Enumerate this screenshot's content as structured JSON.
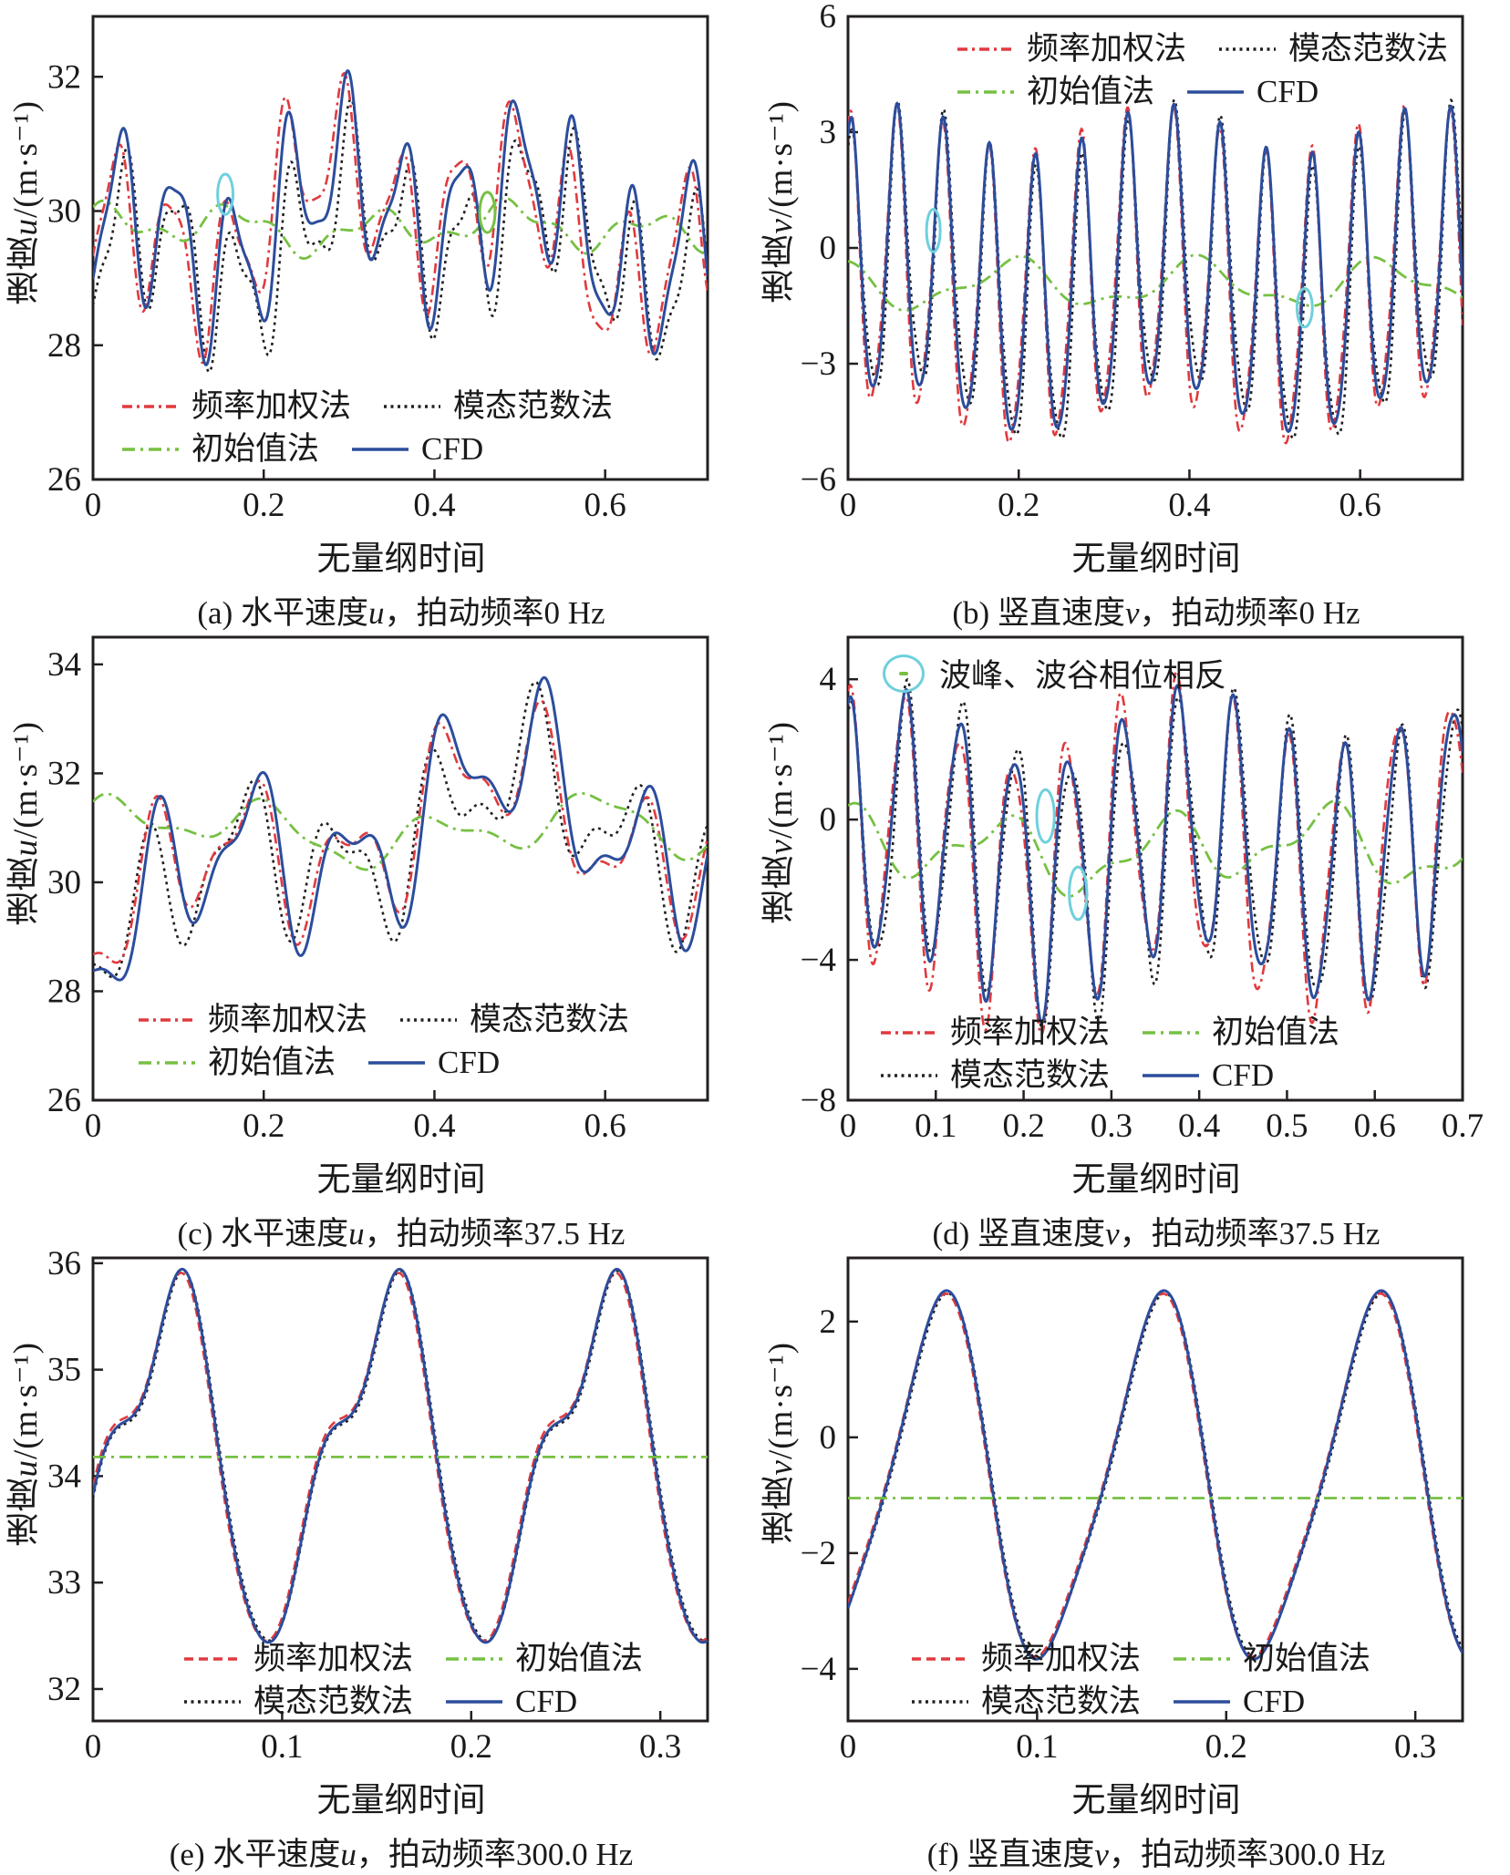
{
  "methods": {
    "fw": {
      "label": "频率加权法"
    },
    "mt": {
      "label": "模态范数法"
    },
    "init": {
      "label": "初始值法"
    },
    "cfd": {
      "label": "CFD"
    }
  },
  "colors": {
    "fw": "#e03a3e",
    "mt": "#231f20",
    "init": "#76c043",
    "cfd": "#2c4d9c",
    "cyan": "#6fd0dc",
    "green": "#76c043",
    "axis": "#231f20"
  },
  "line_styles": {
    "dashdot": "11 5 3 5",
    "longdashdot": "14 6 3 6",
    "dot": "3 4.5",
    "dash": "10 6",
    "solid": ""
  },
  "line_widths": {
    "fw": 2.6,
    "mt": 2.6,
    "init": 2.8,
    "cfd": 3
  },
  "chart_data": [
    {
      "type": "line",
      "id": "a",
      "caption": {
        "pre": "(a) 水平速度",
        "sym": "u",
        "post": "，拍动频率0 Hz"
      },
      "ylabel": {
        "pre": "速度",
        "sym": "u",
        "unit": "/(m·s⁻¹)"
      },
      "xlabel": "无量纲时间",
      "xlim": [
        0,
        0.72
      ],
      "ylim": [
        26,
        32.9
      ],
      "xticks": [
        [
          0,
          "0"
        ],
        [
          0.2,
          "0.2"
        ],
        [
          0.4,
          "0.4"
        ],
        [
          0.6,
          "0.6"
        ]
      ],
      "yticks": [
        [
          26,
          "26"
        ],
        [
          28,
          "28"
        ],
        [
          30,
          "30"
        ],
        [
          32,
          "32"
        ]
      ],
      "legend": {
        "rows": [
          [
            "fw",
            "mt"
          ],
          [
            "init",
            "cfd"
          ]
        ]
      },
      "series": [
        {
          "method": "mt",
          "style": "dot",
          "base": 29.55,
          "terms": [
            [
              0.95,
              15,
              -1.7
            ],
            [
              0.6,
              4.2,
              0.1
            ],
            [
              0.4,
              27,
              0.5
            ],
            [
              0.35,
              1.5,
              4.0
            ]
          ]
        },
        {
          "method": "fw",
          "style": "dashdot",
          "base": 29.85,
          "terms": [
            [
              1.0,
              15,
              -0.9
            ],
            [
              0.65,
              4.2,
              0.9
            ],
            [
              0.3,
              27,
              1.5
            ],
            [
              0.55,
              1.5,
              4.6
            ]
          ]
        },
        {
          "method": "init",
          "style": "longdashdot",
          "base": 29.75,
          "terms": [
            [
              0.25,
              6.2,
              1.3
            ],
            [
              0.12,
              15,
              0.4
            ],
            [
              0.1,
              2.6,
              0.2
            ]
          ]
        },
        {
          "method": "cfd",
          "style": "solid",
          "base": 29.85,
          "terms": [
            [
              1.1,
              15,
              -1.3
            ],
            [
              0.6,
              4.2,
              0.5
            ],
            [
              0.35,
              27,
              0.9
            ],
            [
              0.4,
              1.5,
              4.3
            ]
          ]
        }
      ],
      "annotations": [
        {
          "x": 0.155,
          "y": 30.25,
          "rx": 0.009,
          "ry": 0.3,
          "color": "cyan"
        },
        {
          "x": 0.462,
          "y": 29.98,
          "rx": 0.009,
          "ry": 0.3,
          "color": "green"
        }
      ]
    },
    {
      "type": "line",
      "id": "b",
      "caption": {
        "pre": "(b) 竖直速度",
        "sym": "v",
        "post": "，拍动频率0 Hz"
      },
      "ylabel": {
        "pre": "速度",
        "sym": "v",
        "unit": "/(m·s⁻¹)"
      },
      "xlabel": "无量纲时间",
      "xlim": [
        0,
        0.72
      ],
      "ylim": [
        -6,
        6
      ],
      "xticks": [
        [
          0,
          "0"
        ],
        [
          0.2,
          "0.2"
        ],
        [
          0.4,
          "0.4"
        ],
        [
          0.6,
          "0.6"
        ]
      ],
      "yticks": [
        [
          -6,
          "−6"
        ],
        [
          -3,
          "−3"
        ],
        [
          0,
          "0"
        ],
        [
          3,
          "3"
        ],
        [
          6,
          "6"
        ]
      ],
      "legend": {
        "rows": [
          [
            "fw",
            "mt"
          ],
          [
            "init",
            "cfd"
          ]
        ]
      },
      "series": [
        {
          "method": "mt",
          "style": "dot",
          "base": -1.05,
          "terms": [
            [
              3.5,
              18.5,
              1.0
            ],
            [
              0.85,
              3.2,
              0.1
            ],
            [
              0.6,
              37,
              1.0
            ]
          ]
        },
        {
          "method": "fw",
          "style": "dashdot",
          "base": -1.0,
          "terms": [
            [
              3.7,
              18.5,
              1.35
            ],
            [
              0.6,
              3.2,
              0.7
            ],
            [
              0.55,
              37,
              0.3
            ]
          ]
        },
        {
          "method": "init",
          "style": "longdashdot",
          "base": -0.95,
          "terms": [
            [
              0.55,
              4.6,
              2.3
            ],
            [
              0.22,
              10,
              1.1
            ]
          ]
        },
        {
          "method": "cfd",
          "style": "solid",
          "base": -0.95,
          "terms": [
            [
              3.6,
              18.5,
              1.2
            ],
            [
              0.65,
              3.2,
              0.4
            ],
            [
              0.45,
              37,
              0.6
            ]
          ]
        }
      ],
      "annotations": [
        {
          "x": 0.1,
          "y": 0.45,
          "rx": 0.008,
          "ry": 0.55,
          "color": "cyan"
        },
        {
          "x": 0.535,
          "y": -1.55,
          "rx": 0.009,
          "ry": 0.5,
          "color": "cyan"
        }
      ]
    },
    {
      "type": "line",
      "id": "c",
      "caption": {
        "pre": "(c) 水平速度",
        "sym": "u",
        "post": "，拍动频率37.5 Hz"
      },
      "ylabel": {
        "pre": "速度",
        "sym": "u",
        "unit": "/(m·s⁻¹)"
      },
      "xlabel": "无量纲时间",
      "xlim": [
        0,
        0.72
      ],
      "ylim": [
        26,
        34.5
      ],
      "xticks": [
        [
          0,
          "0"
        ],
        [
          0.2,
          "0.2"
        ],
        [
          0.4,
          "0.4"
        ],
        [
          0.6,
          "0.6"
        ]
      ],
      "yticks": [
        [
          26,
          "26"
        ],
        [
          28,
          "28"
        ],
        [
          30,
          "30"
        ],
        [
          32,
          "32"
        ],
        [
          34,
          "34"
        ]
      ],
      "legend": {
        "rows": [
          [
            "fw",
            "mt"
          ],
          [
            "init",
            "cfd"
          ]
        ]
      },
      "series": [
        {
          "method": "mt",
          "style": "dot",
          "base": 30.55,
          "terms": [
            [
              1.05,
              8.8,
              -1.9
            ],
            [
              0.7,
              3.0,
              -1.5
            ],
            [
              0.55,
              15.5,
              1.2
            ],
            [
              0.9,
              1.05,
              -1.8
            ]
          ]
        },
        {
          "method": "fw",
          "style": "dashdot",
          "base": 30.6,
          "terms": [
            [
              1.0,
              8.8,
              -2.4
            ],
            [
              0.75,
              3.0,
              -1.0
            ],
            [
              0.5,
              15.5,
              0.6
            ],
            [
              0.9,
              1.05,
              -1.6
            ]
          ]
        },
        {
          "method": "init",
          "style": "longdashdot",
          "base": 30.95,
          "terms": [
            [
              0.4,
              5.2,
              1.1
            ],
            [
              0.28,
              2.1,
              0.3
            ],
            [
              0.14,
              11,
              0.7
            ]
          ]
        },
        {
          "method": "cfd",
          "style": "solid",
          "base": 30.6,
          "terms": [
            [
              1.15,
              8.8,
              -2.6
            ],
            [
              0.8,
              3.0,
              -1.2
            ],
            [
              0.55,
              15.5,
              0.2
            ],
            [
              1.0,
              1.05,
              -1.7
            ]
          ]
        }
      ],
      "annotations": []
    },
    {
      "type": "line",
      "id": "d",
      "caption": {
        "pre": "(d) 竖直速度",
        "sym": "v",
        "post": "，拍动频率37.5 Hz"
      },
      "ylabel": {
        "pre": "速度",
        "sym": "v",
        "unit": "/(m·s⁻¹)"
      },
      "xlabel": "无量纲时间",
      "note": "波峰、波谷相位相反",
      "xlim": [
        0,
        0.7
      ],
      "ylim": [
        -8,
        5.2
      ],
      "xticks": [
        [
          0,
          "0"
        ],
        [
          0.1,
          "0.1"
        ],
        [
          0.2,
          "0.2"
        ],
        [
          0.3,
          "0.3"
        ],
        [
          0.4,
          "0.4"
        ],
        [
          0.5,
          "0.5"
        ],
        [
          0.6,
          "0.6"
        ],
        [
          0.7,
          "0.7"
        ]
      ],
      "yticks": [
        [
          -8,
          "−8"
        ],
        [
          -4,
          "−4"
        ],
        [
          0,
          "0"
        ],
        [
          4,
          "4"
        ]
      ],
      "legend": {
        "rows": [
          [
            "fw",
            "init"
          ],
          [
            "mt",
            "cfd"
          ]
        ]
      },
      "series": [
        {
          "method": "mt",
          "style": "dot",
          "base": -1.0,
          "terms": [
            [
              3.7,
              16,
              1.2
            ],
            [
              0.8,
              3.1,
              0.0
            ],
            [
              0.6,
              30,
              1.0
            ]
          ]
        },
        {
          "method": "fw",
          "style": "dashdot",
          "base": -1.0,
          "terms": [
            [
              3.8,
              16,
              1.55
            ],
            [
              0.85,
              3.1,
              0.8
            ],
            [
              0.65,
              30,
              0.4
            ]
          ]
        },
        {
          "method": "init",
          "style": "longdashdot",
          "base": -0.85,
          "terms": [
            [
              0.85,
              5.4,
              1.9
            ],
            [
              0.4,
              11,
              0.5
            ],
            [
              0.3,
              2.2,
              1.0
            ]
          ]
        },
        {
          "method": "cfd",
          "style": "solid",
          "base": -0.9,
          "terms": [
            [
              3.6,
              16,
              1.4
            ],
            [
              0.8,
              3.1,
              0.4
            ],
            [
              0.5,
              30,
              0.7
            ]
          ]
        }
      ],
      "annotations": [
        {
          "x": 0.225,
          "y": 0.1,
          "rx": 0.01,
          "ry": 0.75,
          "color": "cyan"
        },
        {
          "x": 0.262,
          "y": -2.1,
          "rx": 0.01,
          "ry": 0.75,
          "color": "cyan"
        }
      ]
    },
    {
      "type": "line",
      "id": "e",
      "caption": {
        "pre": "(e) 水平速度",
        "sym": "u",
        "post": "，拍动频率300.0 Hz"
      },
      "ylabel": {
        "pre": "速度",
        "sym": "u",
        "unit": "/(m·s⁻¹)"
      },
      "xlabel": "无量纲时间",
      "xlim": [
        0,
        0.325
      ],
      "ylim": [
        31.7,
        36.05
      ],
      "xticks": [
        [
          0,
          "0"
        ],
        [
          0.1,
          "0.1"
        ],
        [
          0.2,
          "0.2"
        ],
        [
          0.3,
          "0.3"
        ]
      ],
      "yticks": [
        [
          32,
          "32"
        ],
        [
          33,
          "33"
        ],
        [
          34,
          "34"
        ],
        [
          35,
          "35"
        ],
        [
          36,
          "36"
        ]
      ],
      "legend": {
        "rows": [
          [
            "fw",
            "init"
          ],
          [
            "mt",
            "cfd"
          ]
        ]
      },
      "series": [
        {
          "method": "mt",
          "style": "dot",
          "base": 34.15,
          "terms": [
            [
              1.5,
              8.7,
              -0.58
            ],
            [
              0.45,
              17.4,
              1.75
            ],
            [
              0.15,
              26.1,
              0.15
            ]
          ]
        },
        {
          "method": "fw",
          "style": "dash",
          "base": 34.15,
          "terms": [
            [
              1.5,
              8.7,
              -0.5
            ],
            [
              0.45,
              17.4,
              1.85
            ],
            [
              0.15,
              26.1,
              0.25
            ]
          ]
        },
        {
          "method": "cfd",
          "style": "solid",
          "base": 34.15,
          "terms": [
            [
              1.52,
              8.7,
              -0.55
            ],
            [
              0.45,
              17.4,
              1.8
            ],
            [
              0.15,
              26.1,
              0.2
            ]
          ]
        },
        {
          "method": "init",
          "style": "longdashdot",
          "base": 34.18,
          "terms": []
        }
      ],
      "annotations": []
    },
    {
      "type": "line",
      "id": "f",
      "caption": {
        "pre": "(f) 竖直速度",
        "sym": "v",
        "post": "，拍动频率300.0 Hz"
      },
      "ylabel": {
        "pre": "速度",
        "sym": "v",
        "unit": "/(m·s⁻¹)"
      },
      "xlabel": "无量纲时间",
      "xlim": [
        0,
        0.325
      ],
      "ylim": [
        -4.9,
        3.1
      ],
      "xticks": [
        [
          0,
          "0"
        ],
        [
          0.1,
          "0.1"
        ],
        [
          0.2,
          "0.2"
        ],
        [
          0.3,
          "0.3"
        ]
      ],
      "yticks": [
        [
          -4,
          "−4"
        ],
        [
          -2,
          "−2"
        ],
        [
          0,
          "0"
        ],
        [
          2,
          "2"
        ]
      ],
      "legend": {
        "rows": [
          [
            "fw",
            "init"
          ],
          [
            "mt",
            "cfd"
          ]
        ]
      },
      "series": [
        {
          "method": "mt",
          "style": "dot",
          "base": -0.8,
          "terms": [
            [
              3.0,
              8.7,
              -1.08
            ],
            [
              0.5,
              17.4,
              1.35
            ]
          ]
        },
        {
          "method": "fw",
          "style": "dash",
          "base": -0.8,
          "terms": [
            [
              3.0,
              8.7,
              -1.02
            ],
            [
              0.5,
              17.4,
              1.45
            ]
          ]
        },
        {
          "method": "cfd",
          "style": "solid",
          "base": -0.8,
          "terms": [
            [
              3.05,
              8.7,
              -1.05
            ],
            [
              0.5,
              17.4,
              1.4
            ]
          ]
        },
        {
          "method": "init",
          "style": "longdashdot",
          "base": -1.05,
          "terms": []
        }
      ],
      "annotations": []
    }
  ]
}
